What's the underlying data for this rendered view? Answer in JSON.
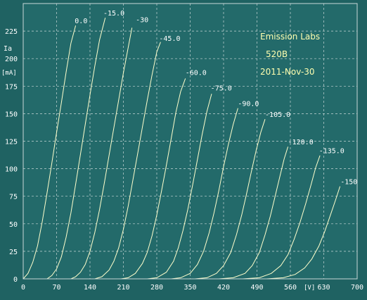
{
  "chart_data": {
    "type": "line",
    "title": "Emission Labs",
    "subtitle": "520B",
    "date": "2011-Nov-30",
    "xlabel": "[V]",
    "ylabel_top": "Ia",
    "ylabel_unit": "[mA]",
    "xlim": [
      0,
      700
    ],
    "ylim": [
      0,
      250
    ],
    "x_ticks": [
      0,
      70,
      140,
      210,
      280,
      350,
      420,
      490,
      560,
      630,
      700
    ],
    "y_ticks": [
      0,
      25,
      50,
      75,
      100,
      125,
      150,
      175,
      200,
      225
    ],
    "grid": true,
    "series": [
      {
        "name": "0.0",
        "points": [
          [
            0,
            0
          ],
          [
            10,
            5
          ],
          [
            20,
            15
          ],
          [
            30,
            30
          ],
          [
            40,
            52
          ],
          [
            50,
            78
          ],
          [
            60,
            105
          ],
          [
            70,
            133
          ],
          [
            80,
            160
          ],
          [
            90,
            188
          ],
          [
            100,
            214
          ],
          [
            110,
            230
          ]
        ]
      },
      {
        "name": "-15.0",
        "points": [
          [
            50,
            0
          ],
          [
            60,
            3
          ],
          [
            70,
            9
          ],
          [
            80,
            20
          ],
          [
            90,
            38
          ],
          [
            100,
            60
          ],
          [
            110,
            86
          ],
          [
            120,
            113
          ],
          [
            130,
            140
          ],
          [
            140,
            167
          ],
          [
            150,
            193
          ],
          [
            160,
            217
          ],
          [
            172,
            237
          ]
        ]
      },
      {
        "name": "-30",
        "points": [
          [
            100,
            0
          ],
          [
            110,
            2
          ],
          [
            120,
            6
          ],
          [
            130,
            13
          ],
          [
            140,
            25
          ],
          [
            150,
            42
          ],
          [
            160,
            63
          ],
          [
            170,
            87
          ],
          [
            180,
            112
          ],
          [
            190,
            137
          ],
          [
            200,
            162
          ],
          [
            210,
            187
          ],
          [
            220,
            210
          ],
          [
            228,
            228
          ]
        ]
      },
      {
        "name": "-45.0",
        "points": [
          [
            150,
            0
          ],
          [
            165,
            2
          ],
          [
            180,
            8
          ],
          [
            190,
            16
          ],
          [
            200,
            28
          ],
          [
            210,
            45
          ],
          [
            220,
            66
          ],
          [
            230,
            90
          ],
          [
            240,
            114
          ],
          [
            250,
            138
          ],
          [
            260,
            162
          ],
          [
            270,
            185
          ],
          [
            280,
            206
          ],
          [
            288,
            215
          ]
        ]
      },
      {
        "name": "-60.0",
        "points": [
          [
            205,
            0
          ],
          [
            220,
            1
          ],
          [
            235,
            5
          ],
          [
            250,
            14
          ],
          [
            260,
            24
          ],
          [
            270,
            39
          ],
          [
            280,
            58
          ],
          [
            290,
            80
          ],
          [
            300,
            103
          ],
          [
            310,
            127
          ],
          [
            320,
            151
          ],
          [
            330,
            170
          ],
          [
            340,
            182
          ]
        ]
      },
      {
        "name": "-75.0",
        "points": [
          [
            260,
            0
          ],
          [
            280,
            1
          ],
          [
            300,
            6
          ],
          [
            315,
            16
          ],
          [
            325,
            28
          ],
          [
            335,
            44
          ],
          [
            345,
            63
          ],
          [
            355,
            85
          ],
          [
            365,
            108
          ],
          [
            375,
            131
          ],
          [
            385,
            152
          ],
          [
            395,
            168
          ]
        ]
      },
      {
        "name": "-90.0",
        "points": [
          [
            310,
            0
          ],
          [
            330,
            1
          ],
          [
            350,
            5
          ],
          [
            365,
            13
          ],
          [
            378,
            25
          ],
          [
            390,
            42
          ],
          [
            400,
            60
          ],
          [
            410,
            80
          ],
          [
            420,
            102
          ],
          [
            430,
            122
          ],
          [
            440,
            140
          ],
          [
            450,
            155
          ]
        ]
      },
      {
        "name": "-105.0",
        "points": [
          [
            360,
            0
          ],
          [
            385,
            1
          ],
          [
            405,
            5
          ],
          [
            420,
            12
          ],
          [
            435,
            24
          ],
          [
            447,
            40
          ],
          [
            458,
            58
          ],
          [
            468,
            77
          ],
          [
            478,
            97
          ],
          [
            488,
            116
          ],
          [
            498,
            133
          ],
          [
            507,
            145
          ]
        ]
      },
      {
        "name": "-120.0",
        "points": [
          [
            410,
            0
          ],
          [
            440,
            1
          ],
          [
            465,
            5
          ],
          [
            480,
            12
          ],
          [
            495,
            24
          ],
          [
            507,
            40
          ],
          [
            518,
            57
          ],
          [
            528,
            75
          ],
          [
            538,
            93
          ],
          [
            547,
            109
          ],
          [
            555,
            120
          ]
        ]
      },
      {
        "name": "-135.0",
        "points": [
          [
            460,
            0
          ],
          [
            495,
            1
          ],
          [
            520,
            5
          ],
          [
            540,
            12
          ],
          [
            555,
            22
          ],
          [
            568,
            36
          ],
          [
            580,
            51
          ],
          [
            592,
            68
          ],
          [
            603,
            85
          ],
          [
            613,
            101
          ],
          [
            622,
            112
          ]
        ]
      },
      {
        "name": "-150",
        "points": [
          [
            510,
            0
          ],
          [
            545,
            1
          ],
          [
            570,
            4
          ],
          [
            590,
            10
          ],
          [
            605,
            18
          ],
          [
            620,
            30
          ],
          [
            632,
            43
          ],
          [
            644,
            58
          ],
          [
            655,
            72
          ],
          [
            664,
            84
          ]
        ]
      }
    ],
    "series_label_positions": [
      {
        "x": 108,
        "y": 232
      },
      {
        "x": 168,
        "y": 239
      },
      {
        "x": 236,
        "y": 233
      },
      {
        "x": 285,
        "y": 216
      },
      {
        "x": 340,
        "y": 185
      },
      {
        "x": 393,
        "y": 171
      },
      {
        "x": 450,
        "y": 157
      },
      {
        "x": 507,
        "y": 147
      },
      {
        "x": 555,
        "y": 122
      },
      {
        "x": 620,
        "y": 114
      },
      {
        "x": 665,
        "y": 86
      }
    ],
    "colors": {
      "background": "#1f6262",
      "plot_background": "#236a6a",
      "grid": "#c8d8d8",
      "curve": "#ffffcc",
      "text": "#ffffff",
      "title_text": "#ffffb0"
    }
  }
}
